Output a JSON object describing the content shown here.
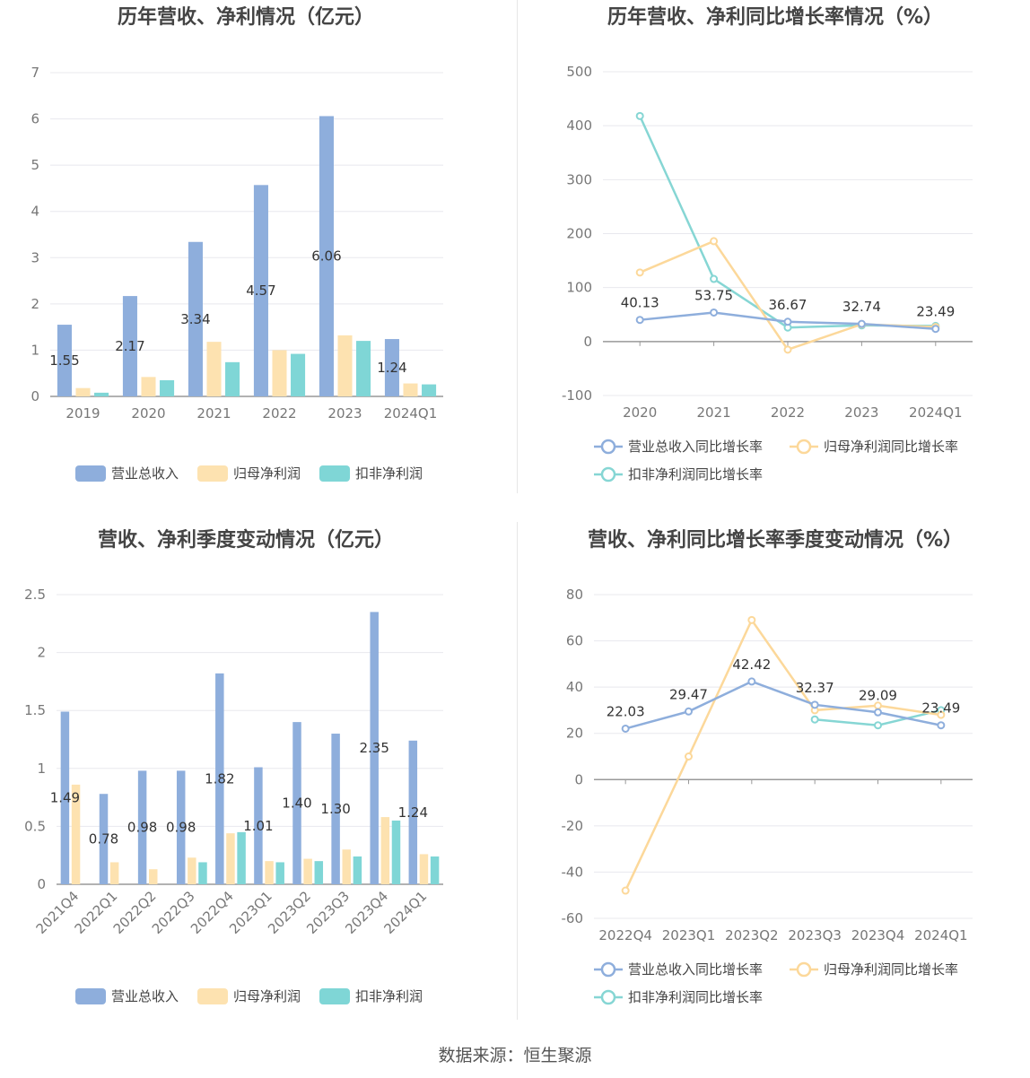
{
  "source": "数据来源：恒生聚源",
  "colors": {
    "revenue": "#8eaedc",
    "net_profit": "#fde2b0",
    "deducted_profit": "#7fd6d6",
    "revenue_line": "#8eaedc",
    "net_line": "#fcd89a",
    "deducted_line": "#86d6d4"
  },
  "chart_data": [
    {
      "type": "bar",
      "title": "历年营收、净利情况（亿元）",
      "categories": [
        "2019",
        "2020",
        "2021",
        "2022",
        "2023",
        "2024Q1"
      ],
      "series": [
        {
          "name": "营业总收入",
          "values": [
            1.55,
            2.17,
            3.34,
            4.57,
            6.06,
            1.24
          ]
        },
        {
          "name": "归母净利润",
          "values": [
            0.18,
            0.42,
            1.18,
            1.0,
            1.32,
            0.28
          ]
        },
        {
          "name": "扣非净利润",
          "values": [
            0.08,
            0.35,
            0.74,
            0.92,
            1.2,
            0.26
          ]
        }
      ],
      "data_labels": [
        "1.55",
        "2.17",
        "3.34",
        "4.57",
        "6.06",
        "1.24"
      ],
      "y_ticks": [
        "0",
        "1",
        "2",
        "3",
        "4",
        "5",
        "6",
        "7"
      ],
      "ylim": [
        0,
        7
      ],
      "grid": true,
      "legend": "bottom"
    },
    {
      "type": "line",
      "title": "历年营收、净利同比增长率情况（%）",
      "categories": [
        "2020",
        "2021",
        "2022",
        "2023",
        "2024Q1"
      ],
      "series": [
        {
          "name": "营业总收入同比增长率",
          "values": [
            40.13,
            53.75,
            36.67,
            32.74,
            23.49
          ]
        },
        {
          "name": "归母净利润同比增长率",
          "values": [
            128,
            186,
            -15,
            32,
            27
          ]
        },
        {
          "name": "扣非净利润同比增长率",
          "values": [
            418,
            116,
            26,
            30,
            29
          ]
        }
      ],
      "data_labels": [
        "40.13",
        "53.75",
        "36.67",
        "32.74",
        "23.49"
      ],
      "y_ticks": [
        "-100",
        "0",
        "100",
        "200",
        "300",
        "400",
        "500"
      ],
      "ylim": [
        -100,
        500
      ],
      "grid": true,
      "legend": "bottom"
    },
    {
      "type": "bar",
      "title": "营收、净利季度变动情况（亿元）",
      "categories": [
        "2021Q4",
        "2022Q1",
        "2022Q2",
        "2022Q3",
        "2022Q4",
        "2023Q1",
        "2023Q2",
        "2023Q3",
        "2023Q4",
        "2024Q1"
      ],
      "series": [
        {
          "name": "营业总收入",
          "values": [
            1.49,
            0.78,
            0.98,
            0.98,
            1.82,
            1.01,
            1.4,
            1.3,
            2.35,
            1.24
          ]
        },
        {
          "name": "归母净利润",
          "values": [
            0.86,
            0.19,
            0.13,
            0.23,
            0.44,
            0.2,
            0.22,
            0.3,
            0.58,
            0.26
          ]
        },
        {
          "name": "扣非净利润",
          "values": [
            0,
            0,
            0,
            0.19,
            0.45,
            0.19,
            0.2,
            0.24,
            0.55,
            0.24
          ]
        }
      ],
      "data_labels": [
        "1.49",
        "0.78",
        "0.98",
        "0.98",
        "1.82",
        "1.01",
        "1.40",
        "1.30",
        "2.35",
        "1.24"
      ],
      "y_ticks": [
        "0",
        "0.5",
        "1",
        "1.5",
        "2",
        "2.5"
      ],
      "ylim": [
        0,
        2.5
      ],
      "grid": true,
      "legend": "bottom"
    },
    {
      "type": "line",
      "title": "营收、净利同比增长率季度变动情况（%）",
      "categories": [
        "2022Q4",
        "2023Q1",
        "2023Q2",
        "2023Q3",
        "2023Q4",
        "2024Q1"
      ],
      "series": [
        {
          "name": "营业总收入同比增长率",
          "values": [
            22.03,
            29.47,
            42.42,
            32.37,
            29.09,
            23.49
          ]
        },
        {
          "name": "归母净利润同比增长率",
          "values": [
            -48,
            10,
            69,
            30,
            32,
            28
          ]
        },
        {
          "name": "扣非净利润同比增长率",
          "values": [
            null,
            null,
            null,
            26,
            23.5,
            30
          ]
        }
      ],
      "data_labels": [
        "22.03",
        "29.47",
        "42.42",
        "32.37",
        "29.09",
        "23.49"
      ],
      "y_ticks": [
        "-60",
        "-40",
        "-20",
        "0",
        "20",
        "40",
        "60",
        "80"
      ],
      "ylim": [
        -60,
        80
      ],
      "grid": true,
      "legend": "bottom"
    }
  ]
}
